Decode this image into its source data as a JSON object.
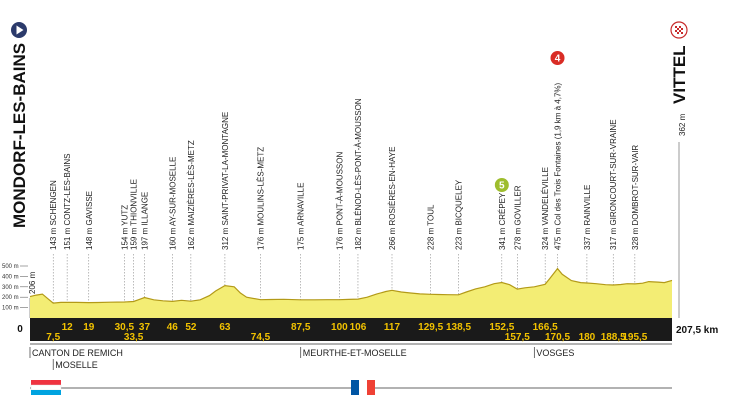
{
  "chart_data": {
    "type": "area",
    "y_unit": "m",
    "x_unit": "km",
    "y_ticks": [
      "500 m",
      "400 m",
      "300 m",
      "200 m",
      "100 m"
    ],
    "x_zero_label": "0",
    "total_label": "207,5 km",
    "start": {
      "name": "MONDORF-LES-BAINS",
      "altitude": "206 m",
      "km": 0
    },
    "finish": {
      "name": "VITTEL",
      "altitude": "362 m",
      "km": 207.5
    },
    "waypoints": [
      {
        "km": 7.5,
        "km_label": "7,5",
        "altitude": "143 m",
        "name": "SCHENGEN",
        "row": "bottom"
      },
      {
        "km": 12,
        "km_label": "12",
        "altitude": "151 m",
        "name": "CONTZ-LES-BAINS",
        "row": "top"
      },
      {
        "km": 19,
        "km_label": "19",
        "altitude": "148 m",
        "name": "GAVISSE",
        "row": "top"
      },
      {
        "km": 30.5,
        "km_label": "30,5",
        "altitude": "154 m",
        "name": "YUTZ",
        "row": "top"
      },
      {
        "km": 33.5,
        "km_label": "33,5",
        "altitude": "159 m",
        "name": "THIONVILLE",
        "row": "bottom"
      },
      {
        "km": 37,
        "km_label": "37",
        "altitude": "197 m",
        "name": "ILLANGE",
        "row": "top"
      },
      {
        "km": 46,
        "km_label": "46",
        "altitude": "160 m",
        "name": "AY-SUR-MOSELLE",
        "row": "top"
      },
      {
        "km": 52,
        "km_label": "52",
        "altitude": "162 m",
        "name": "MAIZIÈRES-LÈS-METZ",
        "row": "top"
      },
      {
        "km": 63,
        "km_label": "63",
        "altitude": "312 m",
        "name": "SAINT-PRIVAT-LA-MONTAGNE",
        "row": "top"
      },
      {
        "km": 74.5,
        "km_label": "74,5",
        "altitude": "176 m",
        "name": "MOULINS-LÈS-METZ",
        "row": "bottom"
      },
      {
        "km": 87.5,
        "km_label": "87,5",
        "altitude": "175 m",
        "name": "ARNAVILLE",
        "row": "top"
      },
      {
        "km": 100,
        "km_label": "100",
        "altitude": "176 m",
        "name": "PONT-À-MOUSSON",
        "row": "top"
      },
      {
        "km": 106,
        "km_label": "106",
        "altitude": "182 m",
        "name": "BLÉNOD-LÈS-PONT-À-MOUSSON",
        "row": "top"
      },
      {
        "km": 117,
        "km_label": "117",
        "altitude": "266 m",
        "name": "ROSIÈRES-EN-HAYE",
        "row": "top"
      },
      {
        "km": 129.5,
        "km_label": "129,5",
        "altitude": "228 m",
        "name": "TOUL",
        "row": "top"
      },
      {
        "km": 138.5,
        "km_label": "138,5",
        "altitude": "223 m",
        "name": "BICQUELEY",
        "row": "top"
      },
      {
        "km": 152.5,
        "km_label": "152,5",
        "altitude": "341 m",
        "name": "CRÉPEY",
        "row": "top"
      },
      {
        "km": 157.5,
        "km_label": "157,5",
        "altitude": "278 m",
        "name": "GOVILLER",
        "row": "bottom"
      },
      {
        "km": 166.5,
        "km_label": "166,5",
        "altitude": "324 m",
        "name": "VANDELÉVILLE",
        "row": "top"
      },
      {
        "km": 170.5,
        "km_label": "170,5",
        "altitude": "475 m",
        "name": "Col des Trois Fontaines (1,9 km à 4,7%)",
        "row": "bottom"
      },
      {
        "km": 180,
        "km_label": "180",
        "altitude": "337 m",
        "name": "RAINVILLE",
        "row": "bottom"
      },
      {
        "km": 188.5,
        "km_label": "188,5",
        "altitude": "317 m",
        "name": "GIRONCOURT-SUR-VRAINE",
        "row": "bottom"
      },
      {
        "km": 195.5,
        "km_label": "195,5",
        "altitude": "328 m",
        "name": "DOMBROT-SUR-VAIR",
        "row": "bottom"
      }
    ],
    "profile_km": [
      0,
      2,
      4,
      6,
      7.5,
      10,
      12,
      15,
      19,
      22,
      26,
      30.5,
      33.5,
      35,
      37,
      40,
      43,
      46,
      49,
      52,
      55,
      58,
      60,
      63,
      66,
      68,
      70,
      74.5,
      78,
      82,
      87.5,
      92,
      96,
      100,
      103,
      106,
      109,
      112,
      115,
      117,
      120,
      123,
      126,
      129.5,
      132,
      135,
      138.5,
      141,
      144,
      147,
      150,
      152.5,
      155,
      157.5,
      160,
      163,
      166.5,
      168,
      170.5,
      172,
      175,
      178,
      180,
      183,
      186,
      188.5,
      191,
      193,
      195.5,
      198,
      200,
      203,
      205,
      207.5
    ],
    "profile_alt": [
      206,
      220,
      230,
      180,
      143,
      150,
      151,
      150,
      148,
      149,
      152,
      154,
      159,
      175,
      197,
      175,
      165,
      160,
      170,
      162,
      175,
      215,
      260,
      312,
      300,
      240,
      200,
      176,
      178,
      180,
      175,
      175,
      176,
      176,
      179,
      182,
      200,
      230,
      255,
      266,
      250,
      240,
      232,
      228,
      226,
      224,
      223,
      250,
      280,
      300,
      330,
      341,
      320,
      278,
      290,
      300,
      324,
      380,
      475,
      420,
      360,
      340,
      337,
      330,
      320,
      317,
      322,
      330,
      328,
      335,
      350,
      345,
      340,
      362
    ],
    "climbs": [
      {
        "label": "4",
        "km": 170.5
      },
      {
        "label": "5",
        "km": 152.5
      }
    ],
    "regions": [
      {
        "name": "CANTON DE REMICH",
        "km": 0,
        "row": 1
      },
      {
        "name": "MOSELLE",
        "km": 7.5,
        "row": 2
      },
      {
        "name": "MEURTHE-ET-MOSELLE",
        "km": 87.5,
        "row": 1
      },
      {
        "name": "VOSGES",
        "km": 163,
        "row": 1
      }
    ],
    "colors": {
      "profile_fill": "#f3ed74",
      "profile_stroke": "#b39a18",
      "band": "#1a1a1a",
      "band_text": "#f2c200",
      "start_marker": "#2b3a6b",
      "climb_4": "#d92c25",
      "climb_5": "#9ebd2d"
    }
  },
  "flags": [
    {
      "name": "luxembourg-flag",
      "stripes": [
        "#ef3340",
        "#ffffff",
        "#00a3e0"
      ],
      "orientation": "horizontal"
    },
    {
      "name": "france-flag",
      "stripes": [
        "#0055a4",
        "#ffffff",
        "#ef4135"
      ],
      "orientation": "vertical"
    }
  ]
}
